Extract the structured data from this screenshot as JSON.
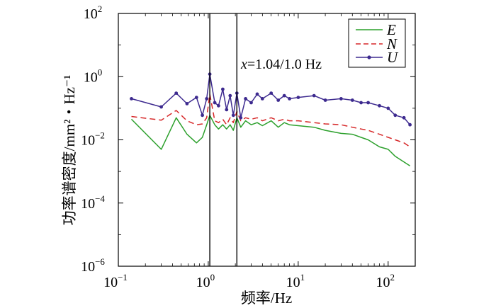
{
  "chart_data": {
    "type": "line",
    "xlabel": "频率/Hz",
    "ylabel": "功率谱密度/mm²・Hz⁻¹",
    "x_scale": "log",
    "y_scale": "log",
    "xlim": [
      0.1,
      200
    ],
    "ylim": [
      1e-06,
      100
    ],
    "x_ticks": [
      {
        "base": "10",
        "exp": "−1"
      },
      {
        "base": "10",
        "exp": "0"
      },
      {
        "base": "10",
        "exp": "1"
      },
      {
        "base": "10",
        "exp": "2"
      }
    ],
    "y_ticks": [
      {
        "base": "10",
        "exp": "−6"
      },
      {
        "base": "10",
        "exp": "−4"
      },
      {
        "base": "10",
        "exp": "−2"
      },
      {
        "base": "10",
        "exp": "0"
      },
      {
        "base": "10",
        "exp": "2"
      }
    ],
    "grid": false,
    "legend_position": "top-right",
    "vlines": [
      1.04,
      2.08
    ],
    "annotation": {
      "prefix": "x",
      "text": "=1.04/1.0 Hz"
    },
    "series": [
      {
        "name": "E",
        "color": "#2ca02c",
        "style": "solid",
        "marker": "none",
        "points": [
          [
            0.14,
            0.045
          ],
          [
            0.3,
            0.005
          ],
          [
            0.44,
            0.05
          ],
          [
            0.58,
            0.015
          ],
          [
            0.74,
            0.008
          ],
          [
            0.86,
            0.012
          ],
          [
            0.96,
            0.03
          ],
          [
            1.04,
            0.06
          ],
          [
            1.18,
            0.03
          ],
          [
            1.3,
            0.022
          ],
          [
            1.45,
            0.03
          ],
          [
            1.6,
            0.022
          ],
          [
            1.75,
            0.03
          ],
          [
            1.9,
            0.02
          ],
          [
            2.08,
            0.05
          ],
          [
            2.3,
            0.025
          ],
          [
            2.6,
            0.04
          ],
          [
            3,
            0.03
          ],
          [
            3.5,
            0.035
          ],
          [
            4,
            0.028
          ],
          [
            5,
            0.04
          ],
          [
            6,
            0.025
          ],
          [
            7,
            0.035
          ],
          [
            8,
            0.03
          ],
          [
            10,
            0.028
          ],
          [
            15,
            0.025
          ],
          [
            20,
            0.02
          ],
          [
            30,
            0.016
          ],
          [
            40,
            0.015
          ],
          [
            50,
            0.012
          ],
          [
            60,
            0.01
          ],
          [
            80,
            0.006
          ],
          [
            100,
            0.005
          ],
          [
            120,
            0.003
          ],
          [
            150,
            0.002
          ],
          [
            175,
            0.0015
          ]
        ]
      },
      {
        "name": "N",
        "color": "#d62728",
        "style": "dashed",
        "marker": "none",
        "points": [
          [
            0.14,
            0.055
          ],
          [
            0.3,
            0.042
          ],
          [
            0.44,
            0.085
          ],
          [
            0.58,
            0.04
          ],
          [
            0.74,
            0.03
          ],
          [
            0.86,
            0.032
          ],
          [
            0.96,
            0.05
          ],
          [
            1.04,
            0.28
          ],
          [
            1.18,
            0.04
          ],
          [
            1.3,
            0.035
          ],
          [
            1.45,
            0.045
          ],
          [
            1.6,
            0.03
          ],
          [
            1.75,
            0.05
          ],
          [
            1.9,
            0.035
          ],
          [
            2.08,
            0.08
          ],
          [
            2.3,
            0.04
          ],
          [
            2.6,
            0.05
          ],
          [
            3,
            0.045
          ],
          [
            3.5,
            0.05
          ],
          [
            4,
            0.04
          ],
          [
            5,
            0.05
          ],
          [
            6,
            0.04
          ],
          [
            7,
            0.045
          ],
          [
            8,
            0.04
          ],
          [
            10,
            0.04
          ],
          [
            15,
            0.035
          ],
          [
            20,
            0.032
          ],
          [
            30,
            0.03
          ],
          [
            40,
            0.025
          ],
          [
            50,
            0.022
          ],
          [
            60,
            0.02
          ],
          [
            80,
            0.015
          ],
          [
            100,
            0.012
          ],
          [
            120,
            0.01
          ],
          [
            150,
            0.008
          ],
          [
            175,
            0.006
          ]
        ]
      },
      {
        "name": "U",
        "color": "#3d2a8f",
        "style": "solid",
        "marker": "dot",
        "points": [
          [
            0.14,
            0.2
          ],
          [
            0.3,
            0.11
          ],
          [
            0.44,
            0.3
          ],
          [
            0.58,
            0.14
          ],
          [
            0.74,
            0.22
          ],
          [
            0.86,
            0.06
          ],
          [
            0.96,
            0.2
          ],
          [
            1.04,
            1.2
          ],
          [
            1.18,
            0.15
          ],
          [
            1.3,
            0.12
          ],
          [
            1.45,
            0.4
          ],
          [
            1.6,
            0.09
          ],
          [
            1.75,
            0.25
          ],
          [
            1.9,
            0.06
          ],
          [
            2.08,
            0.3
          ],
          [
            2.3,
            0.05
          ],
          [
            2.6,
            0.2
          ],
          [
            3,
            0.15
          ],
          [
            3.5,
            0.28
          ],
          [
            4,
            0.2
          ],
          [
            5,
            0.3
          ],
          [
            6,
            0.18
          ],
          [
            7,
            0.25
          ],
          [
            8,
            0.2
          ],
          [
            10,
            0.22
          ],
          [
            15,
            0.25
          ],
          [
            20,
            0.18
          ],
          [
            30,
            0.2
          ],
          [
            40,
            0.18
          ],
          [
            50,
            0.15
          ],
          [
            60,
            0.15
          ],
          [
            80,
            0.12
          ],
          [
            100,
            0.1
          ],
          [
            120,
            0.06
          ],
          [
            150,
            0.05
          ],
          [
            175,
            0.03
          ]
        ]
      }
    ]
  }
}
